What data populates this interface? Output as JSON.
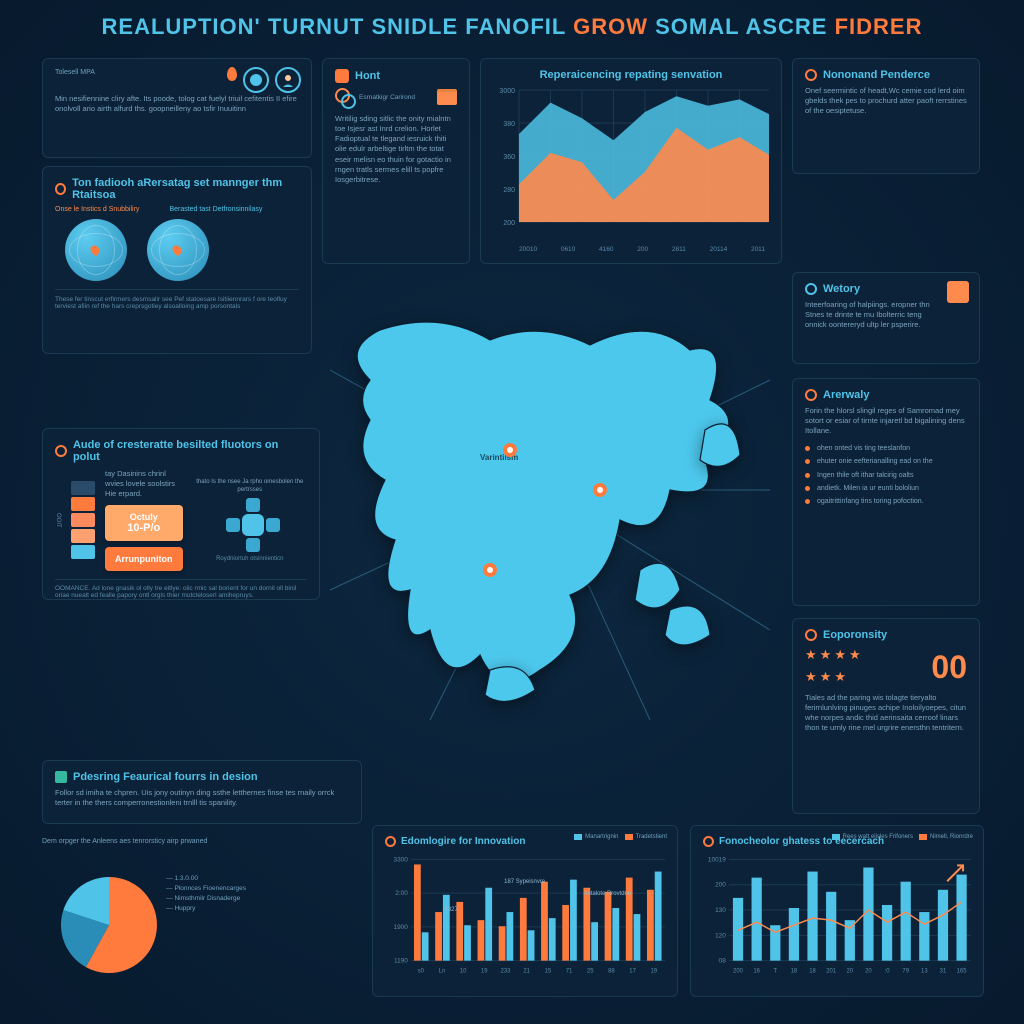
{
  "colors": {
    "bg_outer": "#071a2e",
    "bg_inner": "#0d2840",
    "panel": "#0c2238",
    "panel_border": "#1a3a52",
    "cyan": "#4fc3e8",
    "cyan_dark": "#2a8db8",
    "orange": "#ff7a3d",
    "orange_light": "#ffa96b",
    "text": "#8fb8d4",
    "text_dim": "#7ba3be",
    "text_faint": "#5a8aa8"
  },
  "title": {
    "words": [
      "REALUPTION'",
      "TURNUT",
      "SNIDLE",
      "FANOFIL",
      "GROW",
      "SOMAL",
      "ASCRE",
      "FIDRER"
    ],
    "orange_indices": [
      4,
      7
    ]
  },
  "p1": {
    "label": "Tolesell MPA",
    "body": "Min nesifiennine cliry afte. Its poode, tolog cat fuelyl triuil cefitentis II efire onolvoll ario airth alfurd ths. goopneilleny ao tsfir Inuuitinn"
  },
  "p2": {
    "title": "Ton fadiooh aRersatag set mannger thm Rtaitsoa",
    "sub_left": "Onse le Instics d Snubbiliry",
    "sub_right": "Berasted tast Detfronsinnilasy",
    "caption": "These fer tinscut erfirmers desmsalir see Pef statoesare Isitiiennrars f ore teofluy terviest afiin ref the hars creprsgotiey alsoalloing amp porsontals"
  },
  "p3": {
    "title": "Hont",
    "icon1_txt": "Esrnatkigr Carirond",
    "body": "Writilig sding sitlic the onity mialntn toe Isjesr ast Inrd crelion. Horlet Fadioptual te tlegand iesruick thiti olie edulr arbeltige tirltm the totat eseir melisn eo thuin for gotactio in rngen tratls sermes elill ts popfre Iosgerbitrese."
  },
  "area_chart": {
    "type": "area",
    "title": "Reperaicencing repating senvation",
    "xlabels": [
      "20010",
      "0610",
      "4160",
      "200",
      "2811",
      "20114",
      "2011"
    ],
    "ylabels": [
      "3000",
      "380",
      "360",
      "280",
      "200"
    ],
    "series1_color": "#4fc3e8",
    "series2_color": "#ff8a4d",
    "series1": [
      140,
      190,
      165,
      130,
      175,
      200,
      185,
      195,
      170
    ],
    "series2": [
      60,
      110,
      95,
      35,
      80,
      150,
      115,
      135,
      105
    ],
    "ylim": [
      0,
      210
    ],
    "grid_color": "#1a3a52"
  },
  "r1": {
    "title": "Nononand Penderce",
    "body": "Onef seermintic of headt,Wc cemie cod lerd oim gbelds thek pes to prochurd atter paoft rerrstines of the oesiptetuse."
  },
  "r2": {
    "title": "Wetory",
    "body": "Inteerfoaring of halpiings. eropner thn Stnes te drinte te mu Ibolterric teng onnick oontereryd ultp ler psperire."
  },
  "r3": {
    "title": "Arerwaly",
    "lead": "Forin the hlorsl slingil reges of Samromad mey sotort or esiar of tirnte injaretl bd bigalining dens Itollane.",
    "bullets": [
      "ohen onted vis ting teeslanfon",
      "ehuter onie eefterianalling ead on the",
      "Ingen thile oft ithar talcirig oalts",
      "andietk. Milen ia ur eunti bololiun",
      "ogaitrittinfang tins toring pofoction."
    ]
  },
  "r4": {
    "title": "Eoporonsity",
    "big": "00",
    "body": "Tiales ad the paring wis tolagte tieryalto ferirnlunlving pinuges achipe Inoloilyoepes, citun whe norpes andic thid aerinsaita cerroof linars thon te urnly rine mel urgrire enersthn tentritern."
  },
  "p4": {
    "title": "Aude of cresteratte besilted fluotors on polut",
    "body_top": "tay Dasinins chrinl wvies lovele soolstirs Hie erpard.",
    "body_side": "thato Is the nsee Ja rpho omesbolen the pertrsses",
    "btn1": "Octuly",
    "btn1_sub": "10-P/o",
    "btn2": "Arrunpuniton",
    "xlabel": "Roydniortuh otsinnienticn",
    "tower_colors": [
      "#2a4a6a",
      "#ff7a3d",
      "#ff8a5d",
      "#ffa070",
      "#4fc3e8"
    ],
    "side_label": "OOIT",
    "foot": "OOMANCE. Ad lone gnasik ol olly tre eitlye: olic rmic sal borient for un dornil oll binil oriae nuealt ed fealle papory ontl orgls thier mutcteloserl amihepruys."
  },
  "p5": {
    "title": "Pdesring Feaurical fourrs in desion",
    "body": "Follor sd imiha te chpren. Uis jony outinyn ding ssthe letthernes finse tes rnaily orrck terter in the thers comperronestionleni trnlll tis spanility."
  },
  "map": {
    "label": "Varintilsm",
    "pin_positions": [
      [
        200,
        160
      ],
      [
        290,
        200
      ],
      [
        180,
        280
      ]
    ]
  },
  "pie": {
    "type": "pie",
    "slices": [
      {
        "v": 58,
        "color": "#ff7a3d"
      },
      {
        "v": 22,
        "color": "#2a8db8"
      },
      {
        "v": 20,
        "color": "#4fc3e8"
      }
    ],
    "legend": [
      "1.3.0.00",
      "Plonnces Fioenencarges",
      "Nimsthmilr Disnaderge",
      "Huppry"
    ],
    "peak": "Dem orpger the Anleens aes tenrorsticy airp prwaned"
  },
  "bar1": {
    "type": "grouped-bar",
    "title": "Edomlogire for Innovation",
    "ylabels": [
      "3300",
      "2:00",
      "1900",
      "1190"
    ],
    "xlabels": [
      "s0",
      "Ln",
      "10",
      "19",
      "233",
      "21",
      "15",
      "71",
      "25",
      "88",
      "17",
      "19"
    ],
    "legend": [
      {
        "label": "Manartrignin",
        "color": "#4fc3e8"
      },
      {
        "label": "Tradetstient",
        "color": "#ff7a3d"
      }
    ],
    "series_a": [
      95,
      48,
      58,
      40,
      34,
      62,
      78,
      55,
      72,
      68,
      82,
      70
    ],
    "series_b": [
      28,
      65,
      35,
      72,
      48,
      30,
      42,
      80,
      38,
      52,
      46,
      88
    ],
    "callout1": "187 Sypeisnvre",
    "callout2": "4327",
    "callout3": "Antalote Rrovtdrie",
    "ylim": [
      0,
      100
    ]
  },
  "bar2": {
    "type": "bar-with-line",
    "title": "Fonocheolor ghatess to eecercach",
    "ylabels": [
      "10019",
      "200",
      "130",
      "120",
      "08"
    ],
    "xlabels": [
      "200",
      "16",
      "T",
      "18",
      "18",
      "201",
      "20",
      "20",
      ":0",
      "79",
      "13",
      "31",
      "165"
    ],
    "legend": [
      {
        "label": "Rees watt elisles Frifoners",
        "color": "#4fc3e8"
      },
      {
        "label": "Nimell, Rionrdre",
        "color": "#ff7a3d"
      }
    ],
    "bars": [
      62,
      82,
      35,
      52,
      88,
      68,
      40,
      92,
      55,
      78,
      48,
      70,
      85
    ],
    "line": [
      30,
      38,
      28,
      35,
      42,
      40,
      32,
      50,
      38,
      48,
      36,
      45,
      58
    ],
    "ylim": [
      0,
      100
    ],
    "arrow_color": "#ff8a4d"
  }
}
